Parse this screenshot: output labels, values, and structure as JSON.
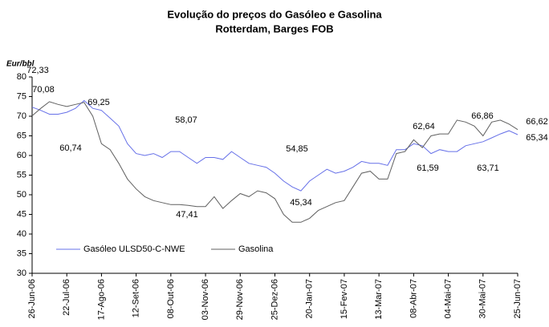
{
  "chart_data": {
    "type": "line",
    "title": [
      "Evolução do preços do Gasóleo e Gasolina",
      "Rotterdam, Barges FOB"
    ],
    "y_label": "Eur/bbl",
    "categories": [
      "26-Jun-06",
      null,
      null,
      null,
      "22-Jul-06",
      null,
      null,
      null,
      "17-Ago-06",
      null,
      null,
      null,
      "12-Set-06",
      null,
      null,
      null,
      "08-Out-06",
      null,
      null,
      null,
      "03-Nov-06",
      null,
      null,
      null,
      "29-Nov-06",
      null,
      null,
      null,
      "25-Dez-06",
      null,
      null,
      null,
      "20-Jan-07",
      null,
      null,
      null,
      "15-Fev-07",
      null,
      null,
      null,
      "13-Mar-07",
      null,
      null,
      null,
      "08-Abr-07",
      null,
      null,
      null,
      "04-Mai-07",
      null,
      null,
      null,
      "30-Mai-07",
      null,
      null,
      null,
      "25-Jun-07"
    ],
    "series": [
      {
        "name": "Gasóleo ULSD50-C-NWE",
        "color": "#6670e8",
        "values": [
          72.3,
          71.5,
          70.5,
          70.5,
          71,
          72,
          74,
          72,
          71.5,
          69.5,
          67.5,
          63,
          60.5,
          60,
          60.5,
          59.5,
          61,
          61,
          59.5,
          58,
          59.5,
          59.5,
          59,
          61,
          59.5,
          58,
          57.5,
          57,
          55.5,
          53.5,
          52,
          51,
          53.5,
          55,
          56.5,
          55.5,
          56,
          57,
          58.5,
          58,
          58,
          57.5,
          61.5,
          61.5,
          63,
          62.5,
          60.5,
          61.5,
          61,
          61,
          62.5,
          63,
          63.5,
          64.5,
          65.5,
          66.3,
          65.3
        ]
      },
      {
        "name": "Gasolina",
        "color": "#606060",
        "values": [
          70.1,
          72,
          73.7,
          73,
          72.5,
          73,
          73.5,
          70,
          63,
          61.5,
          58,
          54,
          51.5,
          49.5,
          48.5,
          48,
          47.5,
          47.5,
          47.3,
          47,
          47,
          49.5,
          46.5,
          48.5,
          50.3,
          49.5,
          51,
          50.5,
          49,
          45,
          43,
          43,
          44,
          46,
          47,
          48,
          48.5,
          52,
          55.5,
          56,
          54,
          54,
          60.5,
          61,
          64,
          62,
          65,
          65.5,
          65.5,
          69,
          68.5,
          67.5,
          65,
          68.5,
          69,
          68,
          66.6
        ]
      }
    ],
    "annotations": [
      "72,33",
      "70,08",
      "69,25",
      "60,74",
      "58,07",
      "47,41",
      "54,85",
      "45,34",
      "62,64",
      "61,59",
      "66,86",
      "63,71",
      "66,62",
      "65,34"
    ],
    "ylim": [
      30,
      80
    ],
    "yticks": [
      30,
      35,
      40,
      45,
      50,
      55,
      60,
      65,
      70,
      75,
      80
    ]
  }
}
